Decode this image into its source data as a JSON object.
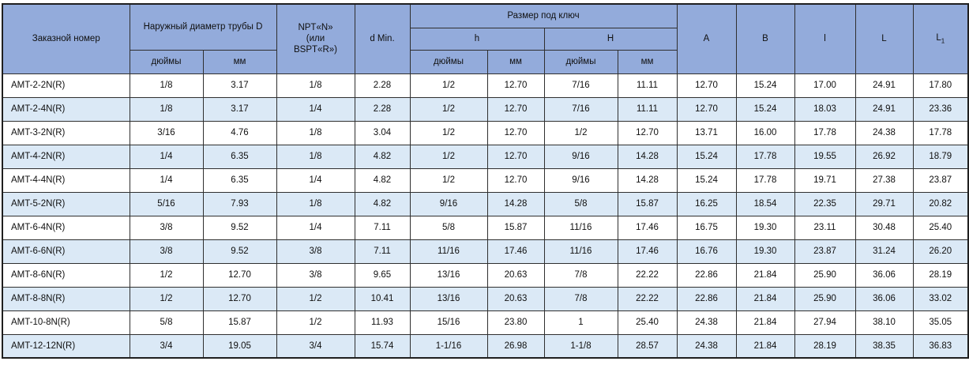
{
  "header": {
    "order_number": "Заказной номер",
    "outer_diameter": "Наружный диаметр трубы D",
    "npt": {
      "line1": "NPT«N»",
      "line2": "(или",
      "line3": "BSPT«R»)"
    },
    "d_min": "d Min.",
    "wrench_size": "Размер под ключ",
    "h_label": "h",
    "H_label": "H",
    "inches_label": "дюймы",
    "mm_label": "мм",
    "A_label": "A",
    "B_label": "B",
    "l_label": "l",
    "L_label": "L",
    "L1": {
      "base": "L",
      "sub": "1"
    }
  },
  "colors": {
    "header_bg": "#93abdb",
    "alt_row_bg": "#dbe9f6",
    "border": "#2f2f2f"
  },
  "rows": [
    [
      "AMT-2-2N(R)",
      "1/8",
      "3.17",
      "1/8",
      "2.28",
      "1/2",
      "12.70",
      "7/16",
      "11.11",
      "12.70",
      "15.24",
      "17.00",
      "24.91",
      "17.80"
    ],
    [
      "AMT-2-4N(R)",
      "1/8",
      "3.17",
      "1/4",
      "2.28",
      "1/2",
      "12.70",
      "7/16",
      "11.11",
      "12.70",
      "15.24",
      "18.03",
      "24.91",
      "23.36"
    ],
    [
      "AMT-3-2N(R)",
      "3/16",
      "4.76",
      "1/8",
      "3.04",
      "1/2",
      "12.70",
      "1/2",
      "12.70",
      "13.71",
      "16.00",
      "17.78",
      "24.38",
      "17.78"
    ],
    [
      "AMT-4-2N(R)",
      "1/4",
      "6.35",
      "1/8",
      "4.82",
      "1/2",
      "12.70",
      "9/16",
      "14.28",
      "15.24",
      "17.78",
      "19.55",
      "26.92",
      "18.79"
    ],
    [
      "AMT-4-4N(R)",
      "1/4",
      "6.35",
      "1/4",
      "4.82",
      "1/2",
      "12.70",
      "9/16",
      "14.28",
      "15.24",
      "17.78",
      "19.71",
      "27.38",
      "23.87"
    ],
    [
      "AMT-5-2N(R)",
      "5/16",
      "7.93",
      "1/8",
      "4.82",
      "9/16",
      "14.28",
      "5/8",
      "15.87",
      "16.25",
      "18.54",
      "22.35",
      "29.71",
      "20.82"
    ],
    [
      "AMT-6-4N(R)",
      "3/8",
      "9.52",
      "1/4",
      "7.11",
      "5/8",
      "15.87",
      "11/16",
      "17.46",
      "16.75",
      "19.30",
      "23.11",
      "30.48",
      "25.40"
    ],
    [
      "AMT-6-6N(R)",
      "3/8",
      "9.52",
      "3/8",
      "7.11",
      "11/16",
      "17.46",
      "11/16",
      "17.46",
      "16.76",
      "19.30",
      "23.87",
      "31.24",
      "26.20"
    ],
    [
      "AMT-8-6N(R)",
      "1/2",
      "12.70",
      "3/8",
      "9.65",
      "13/16",
      "20.63",
      "7/8",
      "22.22",
      "22.86",
      "21.84",
      "25.90",
      "36.06",
      "28.19"
    ],
    [
      "AMT-8-8N(R)",
      "1/2",
      "12.70",
      "1/2",
      "10.41",
      "13/16",
      "20.63",
      "7/8",
      "22.22",
      "22.86",
      "21.84",
      "25.90",
      "36.06",
      "33.02"
    ],
    [
      "AMT-10-8N(R)",
      "5/8",
      "15.87",
      "1/2",
      "11.93",
      "15/16",
      "23.80",
      "1",
      "25.40",
      "24.38",
      "21.84",
      "27.94",
      "38.10",
      "35.05"
    ],
    [
      "AMT-12-12N(R)",
      "3/4",
      "19.05",
      "3/4",
      "15.74",
      "1-1/16",
      "26.98",
      "1-1/8",
      "28.57",
      "24.38",
      "21.84",
      "28.19",
      "38.35",
      "36.83"
    ]
  ]
}
